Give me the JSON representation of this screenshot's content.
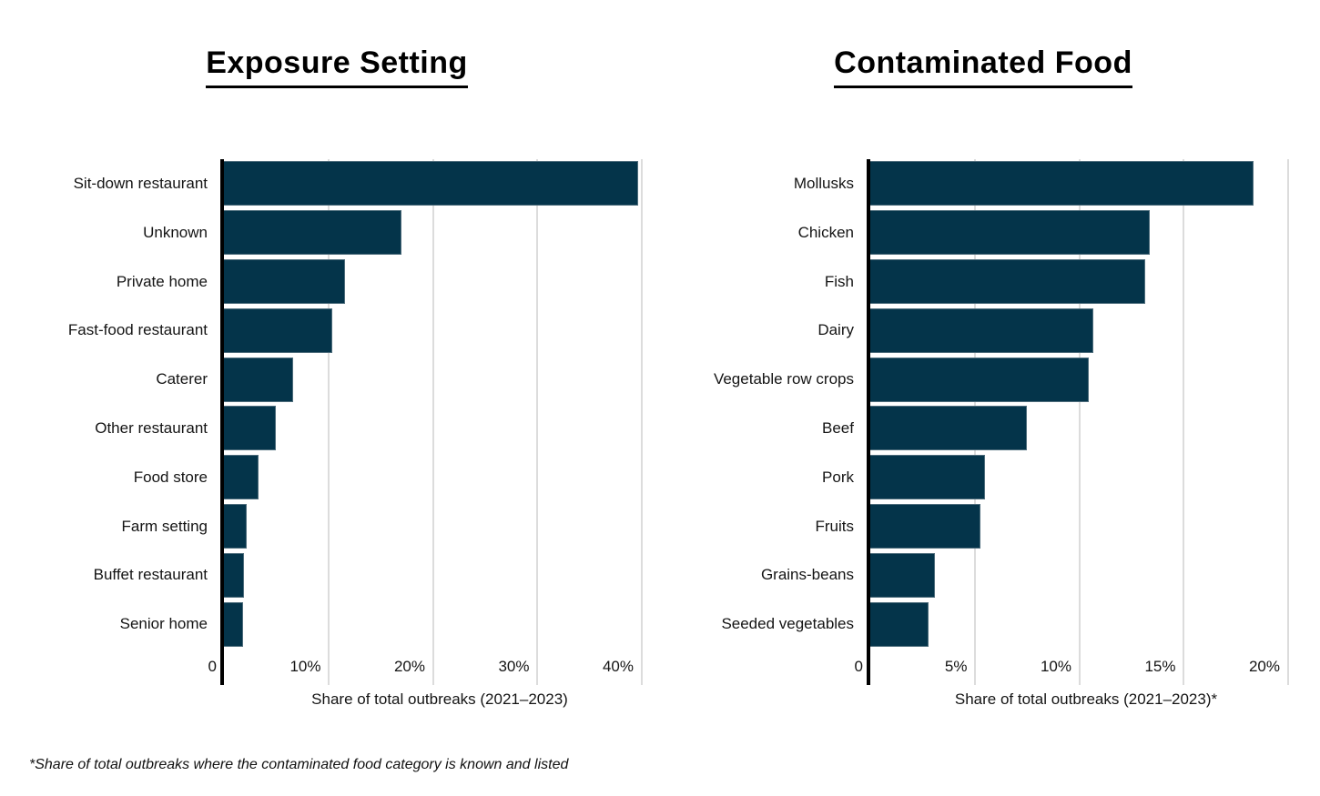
{
  "colors": {
    "bar": "#04344a",
    "bar_border": "#4e6d7c",
    "gridline": "#dcdcdc",
    "axis": "#000000",
    "text": "#141414"
  },
  "footnote": "*Share of total outbreaks where the contaminated food category is known and listed",
  "chart_data": [
    {
      "type": "bar",
      "orientation": "horizontal",
      "title": "Exposure Setting",
      "xlabel": "Share of total outbreaks (2021–2023)",
      "categories": [
        "Sit-down restaurant",
        "Unknown",
        "Private home",
        "Fast-food restaurant",
        "Caterer",
        "Other restaurant",
        "Food store",
        "Farm setting",
        "Buffet restaurant",
        "Senior home"
      ],
      "values": [
        39.7,
        17.0,
        11.6,
        10.4,
        6.6,
        5.0,
        3.3,
        2.2,
        1.9,
        1.8
      ],
      "axis_max": 41.4,
      "xlim": [
        0,
        41.4
      ],
      "grid": true,
      "ticks": [
        {
          "value": 0,
          "label": "0"
        },
        {
          "value": 10,
          "label": "10%"
        },
        {
          "value": 20,
          "label": "20%"
        },
        {
          "value": 30,
          "label": "30%"
        },
        {
          "value": 40,
          "label": "40%"
        }
      ]
    },
    {
      "type": "bar",
      "orientation": "horizontal",
      "title": "Contaminated Food",
      "xlabel": "Share of total outbreaks (2021–2023)*",
      "categories": [
        "Mollusks",
        "Chicken",
        "Fish",
        "Dairy",
        "Vegetable row crops",
        "Beef",
        "Pork",
        "Fruits",
        "Grains-beans",
        "Seeded vegetables"
      ],
      "values": [
        18.4,
        13.4,
        13.2,
        10.7,
        10.5,
        7.5,
        5.5,
        5.3,
        3.1,
        2.8
      ],
      "axis_max": 20.7,
      "xlim": [
        0,
        20.7
      ],
      "grid": true,
      "ticks": [
        {
          "value": 0,
          "label": "0"
        },
        {
          "value": 5,
          "label": "5%"
        },
        {
          "value": 10,
          "label": "10%"
        },
        {
          "value": 15,
          "label": "15%"
        },
        {
          "value": 20,
          "label": "20%"
        }
      ]
    }
  ]
}
